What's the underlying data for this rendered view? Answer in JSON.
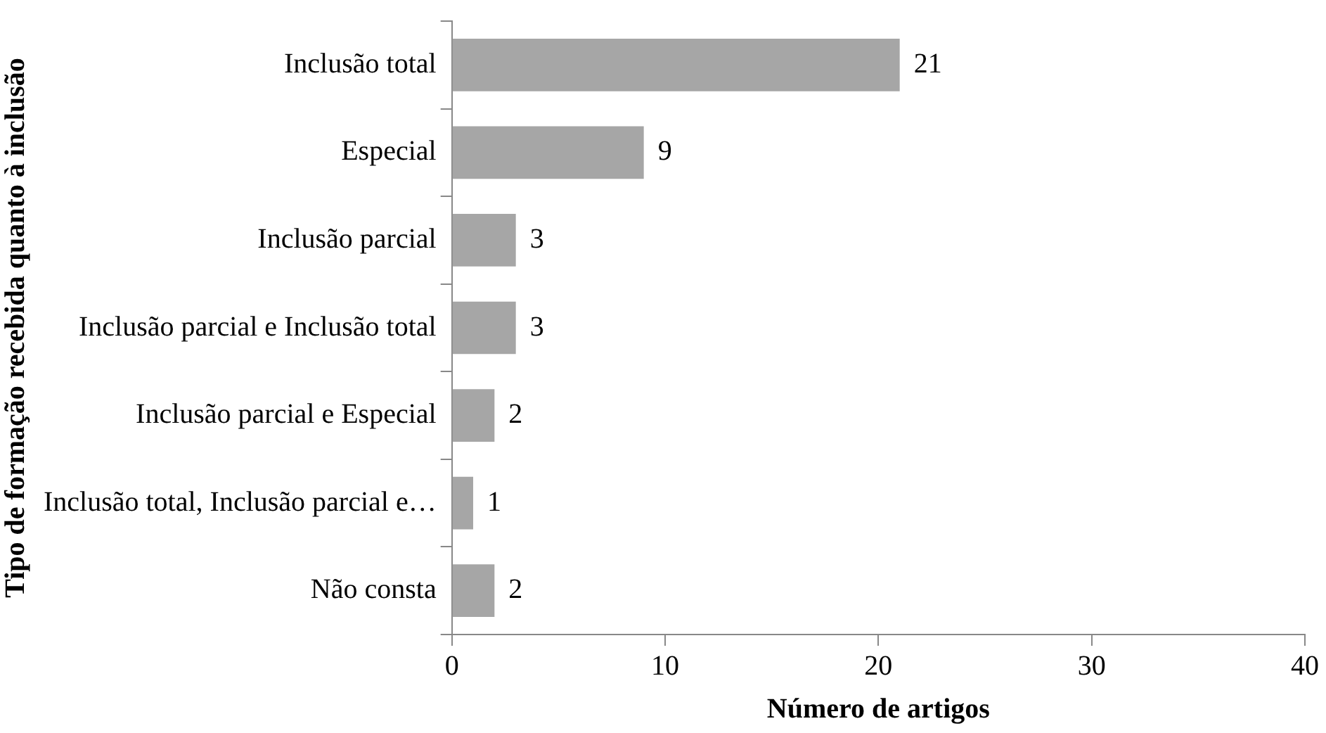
{
  "chart_data": {
    "type": "bar",
    "orientation": "horizontal",
    "xlabel": "Número de artigos",
    "ylabel": "Tipo de formação recebida quanto à inclusão",
    "categories": [
      "Inclusão total",
      "Especial",
      "Inclusão parcial",
      "Inclusão parcial e Inclusão total",
      "Inclusão parcial e Especial",
      "Inclusão total, Inclusão parcial e…",
      "Não consta"
    ],
    "values": [
      21,
      9,
      3,
      3,
      2,
      1,
      2
    ],
    "color": "#a6a6a6",
    "xlim": [
      0,
      40
    ],
    "xticks": [
      0,
      10,
      20,
      30,
      40
    ],
    "data_labels": true,
    "legend": false
  }
}
